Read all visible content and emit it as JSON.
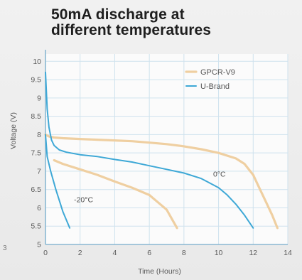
{
  "title": {
    "line1": "50mA discharge at",
    "line2": "different temperatures"
  },
  "edge_mark": "3",
  "colors": {
    "gpcr": "#efcfa1",
    "ubrand": "#3ea8d6",
    "grid": "#cfe2ee",
    "axis": "#8ab8d2",
    "text": "#5b5b5b"
  },
  "chart_data": {
    "type": "line",
    "title": "50mA discharge at different temperatures",
    "xlabel": "Time (Hours)",
    "ylabel": "Voltage (V)",
    "xlim": [
      0,
      14
    ],
    "ylim": [
      5,
      10.2
    ],
    "xticks": [
      0,
      2,
      4,
      6,
      8,
      10,
      12,
      14
    ],
    "yticks": [
      5,
      5.5,
      6,
      6.5,
      7,
      7.5,
      8,
      8.5,
      9,
      9.5,
      10
    ],
    "xtick_labels": [
      "0",
      "2",
      "4",
      "6",
      "8",
      "10",
      "12",
      "14"
    ],
    "ytick_labels": [
      "5",
      "5.5",
      "6",
      "6.5",
      "7",
      "7.5",
      "8",
      "8.5",
      "9",
      "9.5",
      "10"
    ],
    "grid": true,
    "legend": "top-right",
    "series": [
      {
        "name": "GPCR-V9",
        "condition": "0°C",
        "color": "#efcfa1",
        "x": [
          0,
          0.2,
          0.5,
          1,
          2,
          3,
          4,
          5,
          6,
          7,
          8,
          9,
          10,
          11,
          11.5,
          12,
          12.4,
          12.8,
          13.1,
          13.4
        ],
        "y": [
          8.0,
          7.95,
          7.92,
          7.9,
          7.88,
          7.86,
          7.84,
          7.82,
          7.78,
          7.74,
          7.68,
          7.6,
          7.5,
          7.35,
          7.2,
          6.9,
          6.5,
          6.1,
          5.8,
          5.45
        ]
      },
      {
        "name": "U-Brand",
        "condition": "0°C",
        "color": "#3ea8d6",
        "x": [
          0,
          0.05,
          0.1,
          0.2,
          0.35,
          0.5,
          0.8,
          1.2,
          2,
          3,
          4,
          5,
          6,
          7,
          8,
          9,
          10,
          10.5,
          11,
          11.5,
          12
        ],
        "y": [
          9.7,
          9.2,
          8.7,
          8.2,
          7.85,
          7.7,
          7.58,
          7.52,
          7.45,
          7.4,
          7.32,
          7.25,
          7.15,
          7.05,
          6.95,
          6.8,
          6.55,
          6.35,
          6.1,
          5.8,
          5.45
        ]
      },
      {
        "name": "GPCR-V9",
        "condition": "-20°C",
        "color": "#efcfa1",
        "x": [
          0.5,
          1,
          2,
          3,
          4,
          5,
          6,
          6.5,
          7,
          7.3,
          7.6
        ],
        "y": [
          7.3,
          7.2,
          7.05,
          6.9,
          6.72,
          6.55,
          6.35,
          6.15,
          5.95,
          5.7,
          5.45
        ]
      },
      {
        "name": "U-Brand",
        "condition": "-20°C",
        "color": "#3ea8d6",
        "x": [
          0,
          0.1,
          0.3,
          0.6,
          1.0,
          1.4
        ],
        "y": [
          8.0,
          7.4,
          7.0,
          6.5,
          5.9,
          5.45
        ]
      }
    ],
    "annotations": [
      {
        "text": "0°C",
        "x": 10.05,
        "y": 6.85
      },
      {
        "text": "-20°C",
        "x": 2.2,
        "y": 6.15
      }
    ]
  }
}
